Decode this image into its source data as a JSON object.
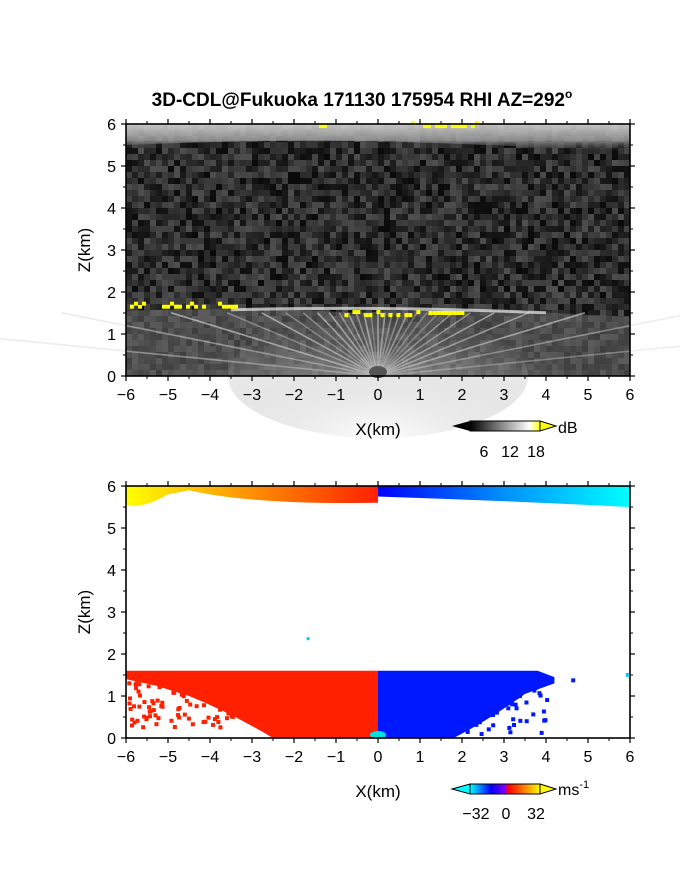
{
  "title": "3D-CDL@Fukuoka 171130 175954 RHI AZ=292",
  "title_superscript": "o",
  "chart_data": [
    {
      "type": "heatmap",
      "name": "intensity",
      "xlabel": "X(km)",
      "ylabel": "Z(km)",
      "xlim": [
        -6,
        6
      ],
      "ylim": [
        0,
        6
      ],
      "xticks": [
        -6,
        -5,
        -4,
        -3,
        -2,
        -1,
        0,
        1,
        2,
        3,
        4,
        5,
        6
      ],
      "yticks": [
        0,
        1,
        2,
        3,
        4,
        5,
        6
      ],
      "colorbar": {
        "unit": "dB",
        "ticks": [
          6,
          12,
          18
        ]
      },
      "colormap": [
        "#000000",
        "#ffffff",
        "#ffff00"
      ],
      "features": {
        "upper_layer_km": [
          5.4,
          6.0
        ],
        "lower_layer_top_km": 1.6,
        "fan_origin_km": [
          0,
          0
        ],
        "yellow_patches": [
          {
            "x": [
              -6.0,
              -3.4
            ],
            "z": 1.65
          },
          {
            "x": [
              -0.8,
              1.0
            ],
            "z": 1.45
          },
          {
            "x": [
              1.2,
              2.0
            ],
            "z": 1.5
          },
          {
            "x": [
              -1.5,
              -1.3
            ],
            "z": 5.95
          },
          {
            "x": [
              0.5,
              2.5
            ],
            "z": 5.95
          }
        ]
      }
    },
    {
      "type": "heatmap",
      "name": "velocity",
      "xlabel": "X(km)",
      "ylabel": "Z(km)",
      "xlim": [
        -6,
        6
      ],
      "ylim": [
        0,
        6
      ],
      "xticks": [
        -6,
        -5,
        -4,
        -3,
        -2,
        -1,
        0,
        1,
        2,
        3,
        4,
        5,
        6
      ],
      "yticks": [
        0,
        1,
        2,
        3,
        4,
        5,
        6
      ],
      "colorbar": {
        "unit": "ms",
        "unit_exponent": "-1",
        "ticks": [
          -32,
          0,
          32
        ]
      },
      "colormap": [
        "#00ffff",
        "#0000ff",
        "#ff0000",
        "#ffff00"
      ],
      "features": {
        "upper_band_left": {
          "x": [
            -6,
            0
          ],
          "z": [
            5.6,
            6.0
          ],
          "from": "#ffff00",
          "to": "#ff2000"
        },
        "upper_band_right": {
          "x": [
            0,
            6
          ],
          "z": [
            5.5,
            6.0
          ],
          "from": "#0000ff",
          "to": "#00ffff"
        },
        "lower_left_color": "#ff2000",
        "lower_right_color": "#0018ff",
        "lower_top_km": 1.6
      }
    }
  ]
}
